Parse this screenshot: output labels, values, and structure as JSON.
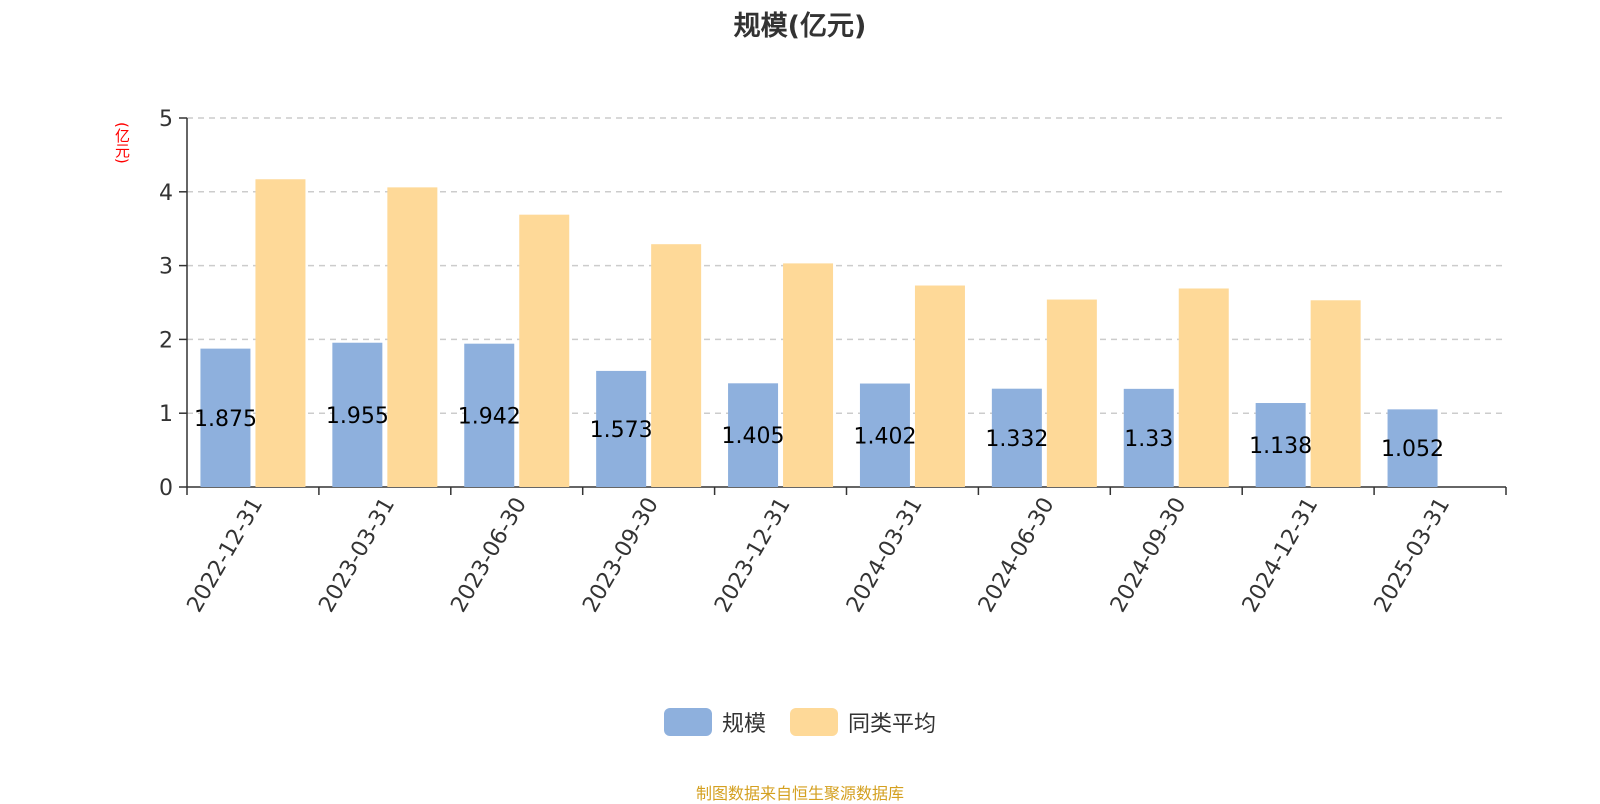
{
  "chart_data": {
    "type": "bar",
    "title": "规模(亿元)",
    "ylabel": "(亿元)",
    "ylim": [
      0,
      5
    ],
    "yticks": [
      0,
      1,
      2,
      3,
      4,
      5
    ],
    "grid": true,
    "legend_position": "bottom-center",
    "categories": [
      "2022-12-31",
      "2023-03-31",
      "2023-06-30",
      "2023-09-30",
      "2023-12-31",
      "2024-03-31",
      "2024-06-30",
      "2024-09-30",
      "2024-12-31",
      "2025-03-31"
    ],
    "series": [
      {
        "name": "规模",
        "color": "#8eb0dd",
        "values": [
          1.875,
          1.955,
          1.942,
          1.573,
          1.405,
          1.402,
          1.332,
          1.33,
          1.138,
          1.052
        ],
        "labels": [
          "1.875",
          "1.955",
          "1.942",
          "1.573",
          "1.405",
          "1.402",
          "1.332",
          "1.33",
          "1.138",
          "1.052"
        ]
      },
      {
        "name": "同类平均",
        "color": "#fed998",
        "values": [
          4.17,
          4.06,
          3.69,
          3.29,
          3.03,
          2.73,
          2.54,
          2.69,
          2.53,
          null
        ]
      }
    ]
  },
  "legend": {
    "series1": "规模",
    "series2": "同类平均"
  },
  "source_note": "制图数据来自恒生聚源数据库",
  "colors": {
    "series1": "#8eb0dd",
    "series2": "#fed998",
    "unit": "#ff0000",
    "source": "#d4a020"
  }
}
